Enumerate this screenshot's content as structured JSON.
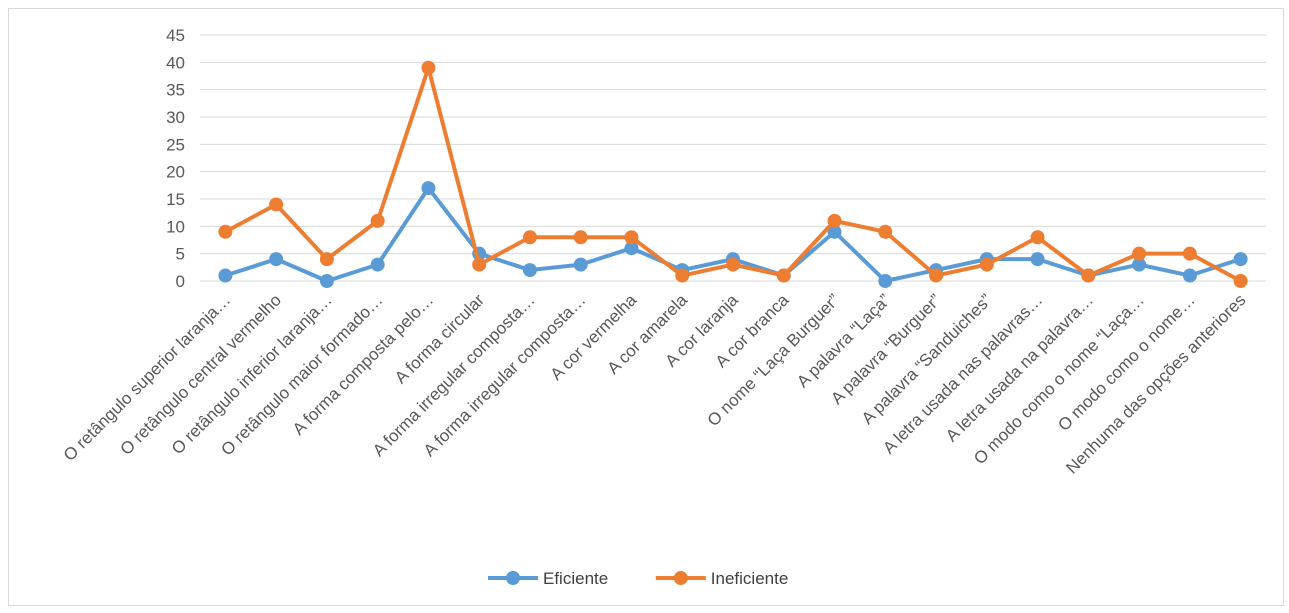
{
  "chart_data": {
    "type": "line",
    "categories": [
      "O retângulo superior laranja…",
      "O retângulo central vermelho",
      "O retângulo inferior laranja…",
      "O retângulo maior formado…",
      "A forma composta pelo…",
      "A forma circular",
      "A forma irregular composta…",
      "A forma irregular composta…",
      "A cor vermelha",
      "A cor amarela",
      "A cor laranja",
      "A cor branca",
      "O nome “Laça Burguer”",
      "A palavra “Laça”",
      "A palavra “Burguer”",
      "A palavra “Sanduiches”",
      "A letra usada nas palavras…",
      "A letra usada na palavra…",
      "O modo como o nome “Laça…",
      "O modo como o nome…",
      "Nenhuma das opções anteriores"
    ],
    "series": [
      {
        "name": "Eficiente",
        "color": "#5B9BD5",
        "values": [
          1,
          4,
          0,
          3,
          17,
          5,
          2,
          3,
          6,
          2,
          4,
          1,
          9,
          0,
          2,
          4,
          4,
          1,
          3,
          1,
          4
        ]
      },
      {
        "name": "Ineficiente",
        "color": "#ED7D31",
        "values": [
          9,
          14,
          4,
          11,
          39,
          3,
          8,
          8,
          8,
          1,
          3,
          1,
          11,
          9,
          1,
          3,
          8,
          1,
          5,
          5,
          0
        ]
      }
    ],
    "yticks": [
      "0",
      "5",
      "10",
      "15",
      "20",
      "25",
      "30",
      "35",
      "40",
      "45"
    ],
    "ylim": [
      0,
      45
    ],
    "grid": true,
    "legend_position": "bottom"
  }
}
